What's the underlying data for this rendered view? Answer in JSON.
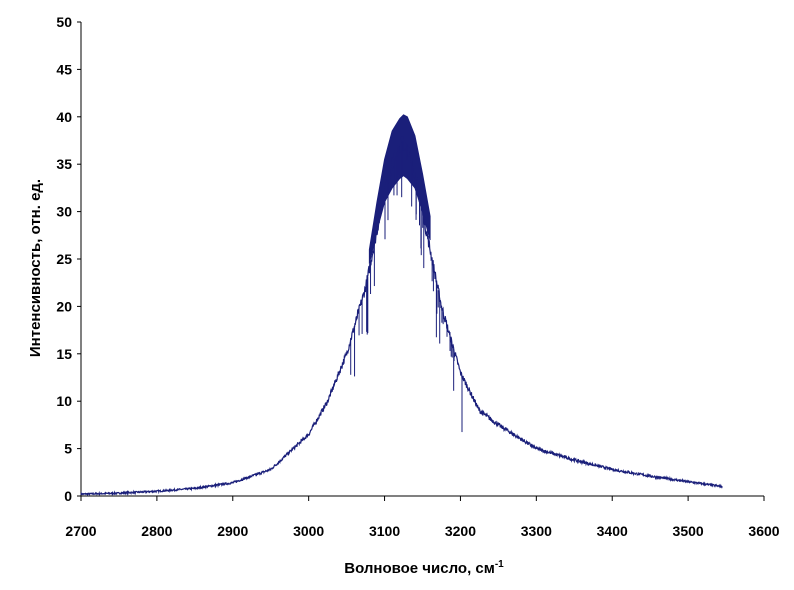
{
  "chart_data": {
    "type": "line",
    "title": "",
    "xlabel": "Волновое число, см",
    "xlabel_sup": "-1",
    "ylabel": "Интенсивность, отн. ед.",
    "xlim": [
      2700,
      3600
    ],
    "ylim": [
      0,
      50
    ],
    "xticks": [
      2700,
      2800,
      2900,
      3000,
      3100,
      3200,
      3300,
      3400,
      3500,
      3600
    ],
    "yticks": [
      0,
      5,
      10,
      15,
      20,
      25,
      30,
      35,
      40,
      45,
      50
    ],
    "grid": false,
    "legend": "none",
    "line_color": "#1a1f7a",
    "series": [
      {
        "x": [
          2700,
          2750,
          2800,
          2850,
          2900,
          2950,
          3000,
          3025,
          3050,
          3075,
          3090,
          3100,
          3110,
          3120,
          3125,
          3130,
          3140,
          3150,
          3160,
          3175,
          3200,
          3225,
          3250,
          3300,
          3350,
          3400,
          3450,
          3500,
          3545
        ],
        "y": [
          0.2,
          0.3,
          0.5,
          0.8,
          1.4,
          2.8,
          6.5,
          10,
          15,
          22,
          28,
          32,
          35,
          37,
          37.5,
          37,
          34,
          30,
          26,
          20,
          13,
          9,
          7.5,
          5,
          3.8,
          2.8,
          2.1,
          1.5,
          1.0
        ],
        "upper_envelope": [
          [
            3080,
            26
          ],
          [
            3090,
            31
          ],
          [
            3100,
            35.5
          ],
          [
            3110,
            38.5
          ],
          [
            3120,
            39.8
          ],
          [
            3125,
            40.2
          ],
          [
            3130,
            40
          ],
          [
            3140,
            38
          ],
          [
            3150,
            34
          ],
          [
            3160,
            29.5
          ]
        ],
        "lower_envelope": [
          [
            3080,
            24.5
          ],
          [
            3090,
            28
          ],
          [
            3100,
            31
          ],
          [
            3110,
            32.5
          ],
          [
            3120,
            33.5
          ],
          [
            3125,
            33.8
          ],
          [
            3130,
            33.5
          ],
          [
            3140,
            32.5
          ],
          [
            3150,
            30
          ],
          [
            3160,
            27
          ]
        ]
      }
    ]
  }
}
